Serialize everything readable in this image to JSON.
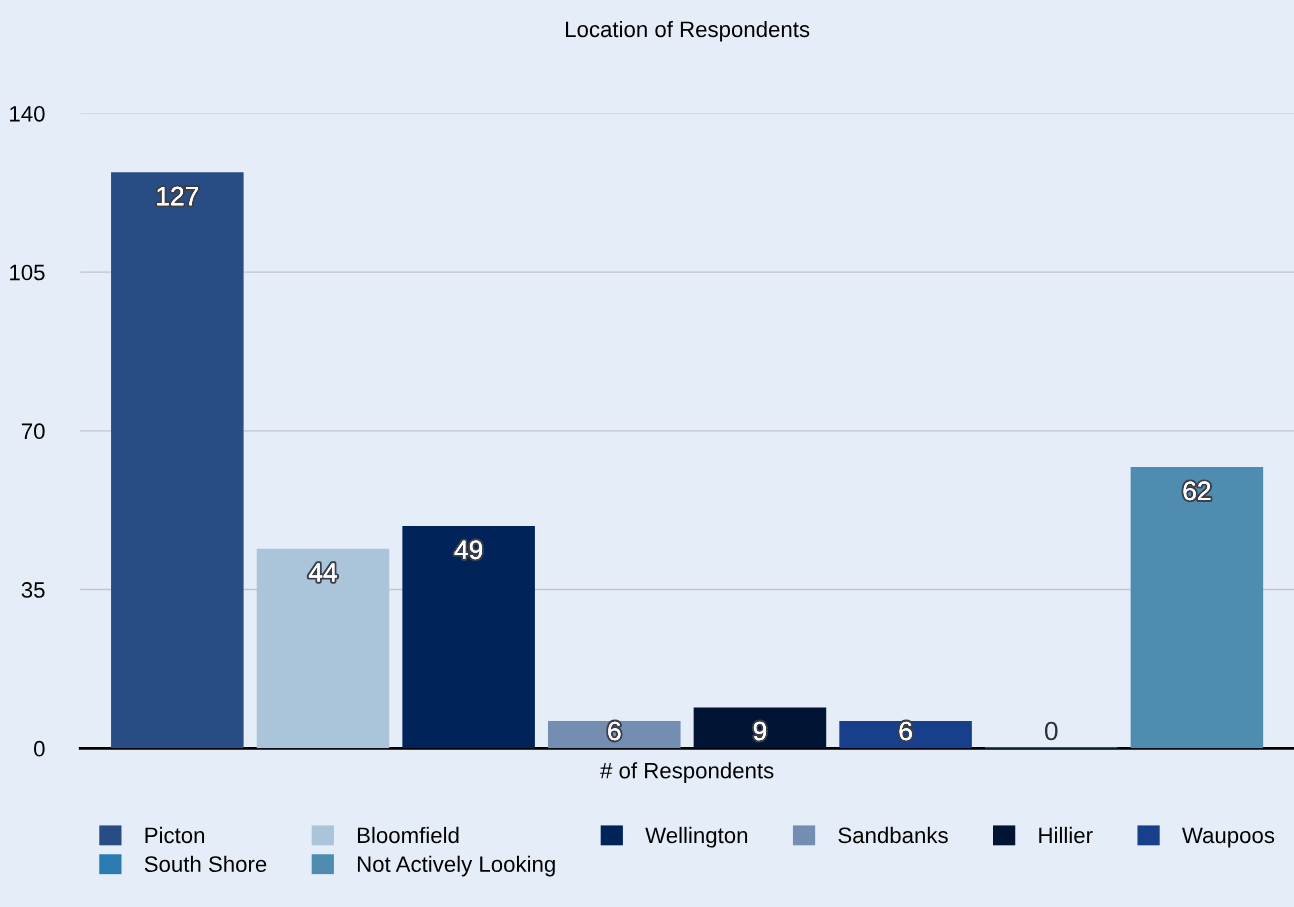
{
  "chart_data": {
    "type": "bar",
    "title": "Location of Respondents",
    "categories": [
      "# of Respondents"
    ],
    "series": [
      {
        "name": "Picton",
        "color": "#284c84",
        "values": [
          127
        ]
      },
      {
        "name": "Bloomfield",
        "color": "#aac4da",
        "values": [
          44
        ]
      },
      {
        "name": "Wellington",
        "color": "#00245a",
        "values": [
          49
        ]
      },
      {
        "name": "Sandbanks",
        "color": "#738eb0",
        "values": [
          6
        ]
      },
      {
        "name": "Hillier",
        "color": "#021433",
        "values": [
          9
        ]
      },
      {
        "name": "Waupoos",
        "color": "#173f8c",
        "values": [
          6
        ]
      },
      {
        "name": "South Shore",
        "color": "#2a7bb0",
        "values": [
          0
        ]
      },
      {
        "name": "Not Actively Looking",
        "color": "#4e8db0",
        "values": [
          62
        ]
      }
    ],
    "ylim": [
      0,
      140
    ],
    "yticks": [
      0,
      35,
      70,
      105,
      140
    ],
    "grid": "y",
    "legend": "bottom",
    "data_labels": true
  }
}
